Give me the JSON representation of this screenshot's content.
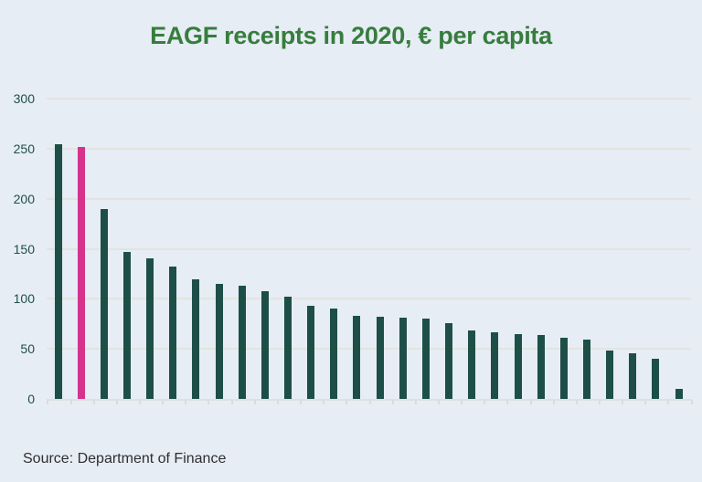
{
  "title": "EAGF receipts in 2020, € per capita",
  "source_caption": "Source: Department of Finance",
  "colors": {
    "background": "#e6edf4",
    "bar": "#1d4f48",
    "highlight_bar": "#d5338c",
    "title_text": "#377d3e",
    "axis_label_text": "#1e4f4b",
    "gridline": "#e3e4e0",
    "source_text": "#2e2e33"
  },
  "chart_data": {
    "type": "bar",
    "title": "EAGF receipts in 2020, € per capita",
    "xlabel": "",
    "ylabel": "",
    "values": [
      254,
      252,
      190,
      147,
      140,
      132,
      119,
      115,
      113,
      108,
      102,
      93,
      90,
      83,
      82,
      81,
      80,
      76,
      68,
      67,
      65,
      64,
      61,
      59,
      48,
      46,
      40,
      10
    ],
    "highlight_index": 1,
    "yticks": [
      0,
      50,
      100,
      150,
      200,
      250,
      300
    ],
    "ylim": [
      0,
      300
    ],
    "grid": "horizontal",
    "legend": "none",
    "x_tick_labels_visible": false
  }
}
